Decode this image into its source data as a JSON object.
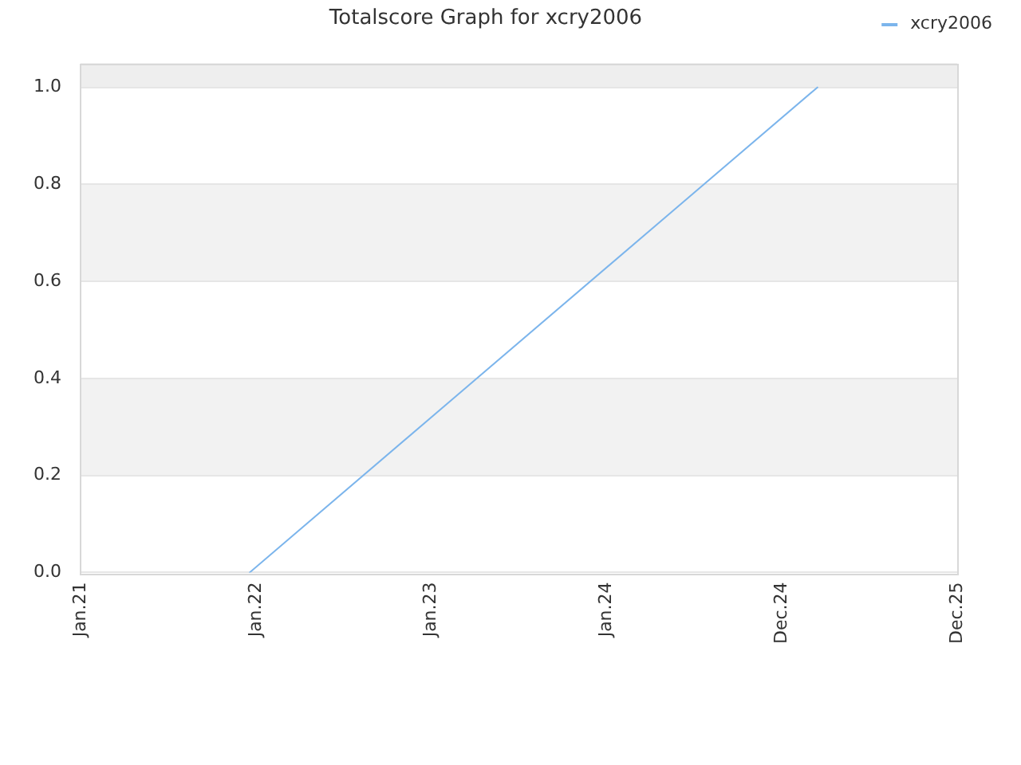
{
  "chart_data": {
    "type": "line",
    "title": "Totalscore Graph for xcry2006",
    "x": [
      "2021-12-19",
      "2025-03-15"
    ],
    "series": [
      {
        "name": "xcry2006",
        "color": "#7cb5ec",
        "values": [
          0,
          1
        ]
      }
    ],
    "xlim": [
      "2021-01-01",
      "2025-12-31"
    ],
    "xticks": [
      {
        "value": "2021-01-01",
        "label": "Jan.21"
      },
      {
        "value": "2022-01-01",
        "label": "Jan.22"
      },
      {
        "value": "2023-01-01",
        "label": "Jan.23"
      },
      {
        "value": "2024-01-01",
        "label": "Jan.24"
      },
      {
        "value": "2024-12-31",
        "label": "Dec.24"
      },
      {
        "value": "2025-12-31",
        "label": "Dec.25"
      }
    ],
    "ylim": [
      0,
      1.05
    ],
    "yticks": [
      {
        "value": 0,
        "label": "0.0"
      },
      0.2,
      0.4,
      0.6,
      0.8,
      {
        "value": 1,
        "label": "1.0"
      }
    ],
    "bands": [
      {
        "axis": "y",
        "from": 0.2,
        "to": 0.4,
        "color": "#f2f2f2"
      },
      {
        "axis": "y",
        "from": 0.6,
        "to": 0.8,
        "color": "#f2f2f2"
      },
      {
        "axis": "y",
        "from": 1,
        "to": 1.05,
        "color": "#eeeeee"
      }
    ],
    "grid": "y",
    "legend": "top right",
    "marker": "none",
    "line_style": "solid"
  }
}
